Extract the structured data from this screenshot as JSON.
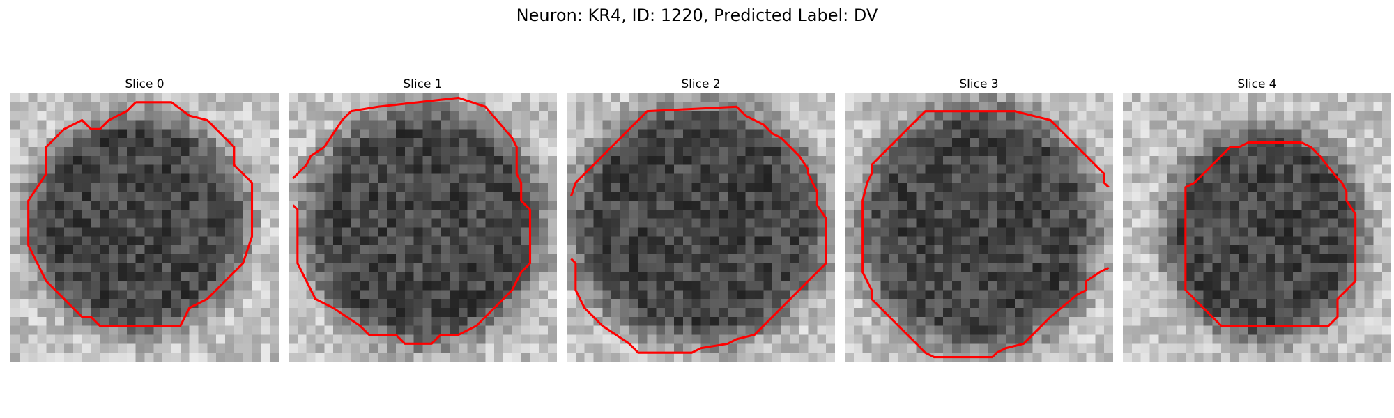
{
  "figure": {
    "title": "Neuron: KR4, ID: 1220, Predicted Label: DV"
  },
  "grid_size": 30,
  "contour_color": "#ff0000",
  "slices": [
    {
      "label": "Slice 0",
      "center": [
        14.2,
        14.5
      ],
      "radius": [
        12.0,
        12.0
      ],
      "contour": [
        [
          14,
          1
        ],
        [
          18,
          1
        ],
        [
          20,
          2.5
        ],
        [
          22,
          3
        ],
        [
          25,
          6
        ],
        [
          25,
          8
        ],
        [
          27,
          10
        ],
        [
          27,
          16
        ],
        [
          26,
          19
        ],
        [
          23,
          22
        ],
        [
          22,
          23
        ],
        [
          20,
          24
        ],
        [
          19,
          26
        ],
        [
          10,
          26
        ],
        [
          9,
          25
        ],
        [
          8,
          25
        ],
        [
          5,
          22
        ],
        [
          4,
          21
        ],
        [
          3,
          19
        ],
        [
          2,
          17
        ],
        [
          2,
          12
        ],
        [
          4,
          9
        ],
        [
          4,
          6
        ],
        [
          5,
          5
        ],
        [
          6,
          4
        ],
        [
          8,
          3
        ],
        [
          9,
          4
        ],
        [
          10,
          4
        ],
        [
          11,
          3
        ],
        [
          13,
          2
        ],
        [
          14,
          1
        ]
      ]
    },
    {
      "label": "Slice 1",
      "center": [
        15.0,
        14.8
      ],
      "radius": [
        13.2,
        13.0
      ],
      "contour": [
        [
          0.5,
          9.5
        ],
        [
          2,
          8
        ],
        [
          2.5,
          7
        ],
        [
          4,
          6
        ],
        [
          6,
          3
        ],
        [
          7,
          2
        ],
        [
          10,
          1.5
        ],
        [
          19,
          0.5
        ],
        [
          22,
          1.5
        ],
        [
          25,
          5
        ],
        [
          25.5,
          6
        ],
        [
          25.5,
          9
        ],
        [
          26,
          10
        ],
        [
          26,
          12
        ],
        [
          27,
          13
        ],
        [
          27,
          19
        ],
        [
          26,
          20
        ],
        [
          25,
          22
        ],
        [
          22,
          25
        ],
        [
          21,
          26
        ],
        [
          19,
          27
        ],
        [
          17,
          27
        ],
        [
          16,
          28
        ],
        [
          13,
          28
        ],
        [
          12,
          27
        ],
        [
          9,
          27
        ],
        [
          8,
          26
        ],
        [
          5,
          24
        ],
        [
          3,
          23
        ],
        [
          2,
          21
        ],
        [
          1,
          19
        ],
        [
          1,
          13
        ],
        [
          0.5,
          12.5
        ]
      ]
    },
    {
      "label": "Slice 2",
      "center": [
        14.8,
        14.5
      ],
      "radius": [
        14.0,
        13.2
      ],
      "contour": [
        [
          0.5,
          11.5
        ],
        [
          1,
          10
        ],
        [
          2,
          9
        ],
        [
          4,
          7
        ],
        [
          6,
          5
        ],
        [
          7,
          4
        ],
        [
          8,
          3
        ],
        [
          9,
          2
        ],
        [
          19,
          1.5
        ],
        [
          20,
          2.5
        ],
        [
          21,
          3
        ],
        [
          22,
          3.5
        ],
        [
          23,
          4.5
        ],
        [
          24,
          5
        ],
        [
          26,
          7
        ],
        [
          27,
          8.5
        ],
        [
          27,
          9
        ],
        [
          28,
          11
        ],
        [
          28,
          12.5
        ],
        [
          29,
          14
        ],
        [
          29,
          19
        ],
        [
          26,
          22
        ],
        [
          21,
          27
        ],
        [
          19,
          27.5
        ],
        [
          18,
          28
        ],
        [
          15,
          28.5
        ],
        [
          14,
          29
        ],
        [
          8,
          29
        ],
        [
          7,
          28
        ],
        [
          4,
          26
        ],
        [
          2,
          24
        ],
        [
          1,
          22
        ],
        [
          1,
          19
        ],
        [
          0.5,
          18.5
        ]
      ]
    },
    {
      "label": "Slice 3",
      "center": [
        15.0,
        15.0
      ],
      "radius": [
        13.0,
        13.5
      ],
      "contour": [
        [
          29.5,
          10.5
        ],
        [
          29,
          10
        ],
        [
          29,
          9
        ],
        [
          27,
          7
        ],
        [
          26,
          6
        ],
        [
          24,
          4
        ],
        [
          23,
          3
        ],
        [
          21,
          2.5
        ],
        [
          19,
          2
        ],
        [
          9,
          2
        ],
        [
          8,
          3
        ],
        [
          7,
          4
        ],
        [
          5,
          6
        ],
        [
          4,
          7
        ],
        [
          3,
          8
        ],
        [
          3,
          9
        ],
        [
          2.5,
          10
        ],
        [
          2,
          12
        ],
        [
          2,
          14
        ],
        [
          2,
          16
        ],
        [
          2,
          20
        ],
        [
          2.5,
          21
        ],
        [
          3,
          22
        ],
        [
          3,
          23
        ],
        [
          4,
          24
        ],
        [
          5,
          25
        ],
        [
          6,
          26
        ],
        [
          7,
          27
        ],
        [
          8,
          28
        ],
        [
          9,
          29
        ],
        [
          10,
          29.5
        ],
        [
          16.5,
          29.5
        ],
        [
          17,
          29
        ],
        [
          18,
          28.5
        ],
        [
          20,
          28
        ],
        [
          21,
          27
        ],
        [
          23,
          25
        ],
        [
          26,
          22.5
        ],
        [
          27,
          22
        ],
        [
          27,
          21
        ],
        [
          28.5,
          20
        ],
        [
          29.5,
          19.5
        ]
      ]
    },
    {
      "label": "Slice 4",
      "center": [
        15.8,
        15.8
      ],
      "radius": [
        11.0,
        11.8
      ],
      "contour": [
        [
          20,
          5.5
        ],
        [
          21,
          6
        ],
        [
          22,
          7
        ],
        [
          24,
          9.5
        ],
        [
          24.5,
          10
        ],
        [
          25,
          11
        ],
        [
          25,
          12
        ],
        [
          26,
          13.5
        ],
        [
          26,
          21
        ],
        [
          25,
          22
        ],
        [
          24,
          23
        ],
        [
          24,
          25
        ],
        [
          23,
          26
        ],
        [
          21,
          26
        ],
        [
          19,
          26
        ],
        [
          11,
          26
        ],
        [
          10,
          25
        ],
        [
          9,
          24
        ],
        [
          8,
          23
        ],
        [
          7,
          22
        ],
        [
          7,
          10.5
        ],
        [
          8,
          10
        ],
        [
          9,
          9
        ],
        [
          10,
          8
        ],
        [
          11,
          7
        ],
        [
          12,
          6
        ],
        [
          13,
          6
        ],
        [
          14,
          5.5
        ],
        [
          20,
          5.5
        ]
      ]
    }
  ]
}
